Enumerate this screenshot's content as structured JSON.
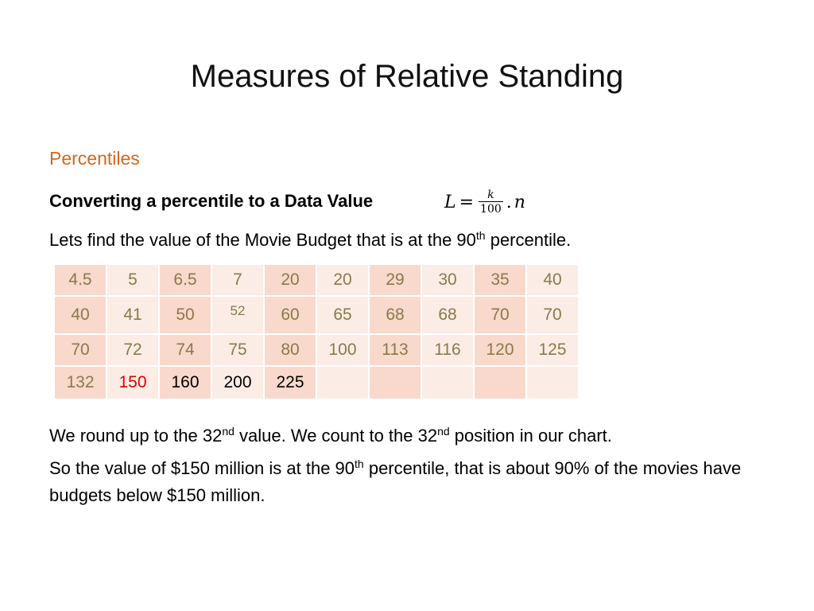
{
  "slide": {
    "title": "Measures of Relative Standing",
    "subtitle": "Percentiles",
    "heading": "Converting a percentile to a Data Value",
    "formula": {
      "lhs": "L",
      "eq": "=",
      "numerator": "k",
      "denominator": "100",
      "dot": ".",
      "var": "n"
    },
    "para1": {
      "before": "Lets find the value of the Movie Budget that is at the 90",
      "sup": "th",
      "after": " percentile."
    },
    "para2": {
      "a": "We round up to the 32",
      "sup1": "nd",
      "b": " value.  We count to the 32",
      "sup2": "nd",
      "c": " position in our chart."
    },
    "para3": {
      "a": "So the value of $150 million is at the 90",
      "sup": "th",
      "b": " percentile, that is about 90% of the movies have budgets below $150 million."
    }
  },
  "table": {
    "rows": [
      [
        "4.5",
        "5",
        "6.5",
        "7",
        "20",
        "20",
        "29",
        "30",
        "35",
        "40"
      ],
      [
        "40",
        "41",
        "50",
        "52",
        "60",
        "65",
        "68",
        "68",
        "70",
        "70"
      ],
      [
        "70",
        "72",
        "74",
        "75",
        "80",
        "100",
        "113",
        "116",
        "120",
        "125"
      ],
      [
        "132",
        "150",
        "160",
        "200",
        "225",
        "",
        "",
        "",
        "",
        ""
      ]
    ],
    "colors": {
      "cell_dark": "#f8d9cc",
      "cell_light": "#fcece6",
      "text_default": "#8a7a4a",
      "highlight": "#e00000",
      "subtitle": "#d4681b"
    }
  }
}
